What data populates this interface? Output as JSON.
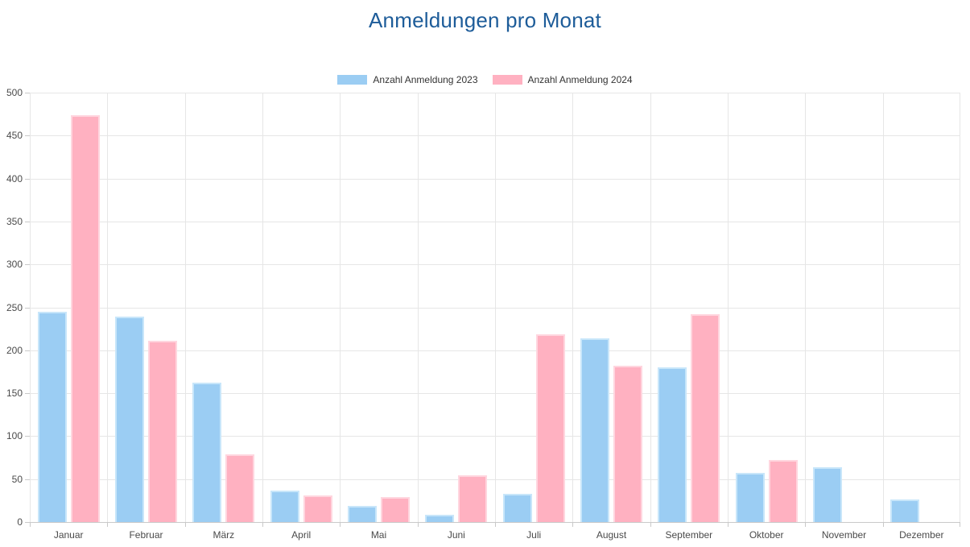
{
  "title": "Anmeldungen pro Monat",
  "chart_data": {
    "type": "bar",
    "title": "Anmeldungen pro Monat",
    "categories": [
      "Januar",
      "Februar",
      "März",
      "April",
      "Mai",
      "Juni",
      "Juli",
      "August",
      "September",
      "Oktober",
      "November",
      "Dezember"
    ],
    "series": [
      {
        "name": "Anzahl Anmeldung 2023",
        "color": "#9BCDF3",
        "border_color": "#C8E6FA",
        "values": [
          245,
          239,
          162,
          37,
          19,
          8,
          33,
          214,
          180,
          57,
          64,
          26
        ]
      },
      {
        "name": "Anzahl Anmeldung 2024",
        "color": "#FFB1C1",
        "border_color": "#FFD6DF",
        "values": [
          474,
          211,
          79,
          31,
          29,
          54,
          219,
          182,
          242,
          72,
          null,
          null
        ]
      }
    ],
    "xlabel": "",
    "ylabel": "",
    "ylim": [
      0,
      500
    ],
    "ytick_step": 50,
    "grid": true,
    "legend_position": "top"
  },
  "colors": {
    "title": "#1D5C99",
    "legend_text": "#333333",
    "tick_text": "#4A4A4A",
    "gridline": "#E6E6E6",
    "axis_line": "#C9C9C9"
  }
}
